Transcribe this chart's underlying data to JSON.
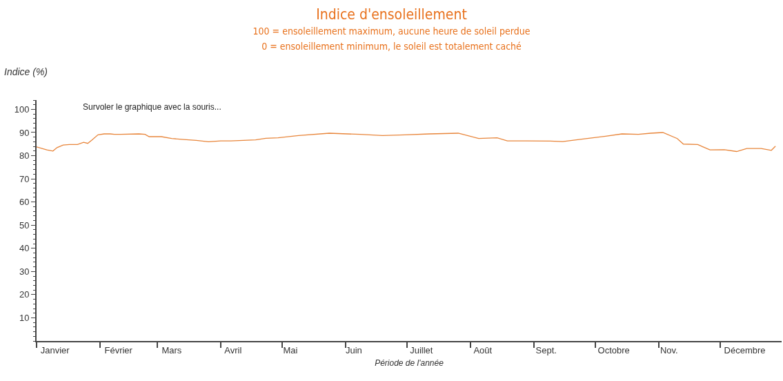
{
  "chart_data": {
    "type": "line",
    "title": "Indice d'ensoleillement",
    "subtitle": "100 = ensoleillement maximum, aucune heure de soleil perdue\n0 = ensoleillement minimum, le soleil est totalement caché",
    "xlabel": "Période de l'année",
    "ylabel": "Indice (%)",
    "annotations": [
      "Survoler le graphique avec la souris..."
    ],
    "x": [
      "--01-01",
      "--01-06",
      "--01-09",
      "--01-11",
      "--01-14",
      "--01-17",
      "--01-21",
      "--01-24",
      "--01-26",
      "--01-28",
      "--01-31",
      "--02-03",
      "--02-06",
      "--02-08",
      "--02-11",
      "--02-20",
      "--02-23",
      "--02-25",
      "--03-03",
      "--03-08",
      "--03-14",
      "--03-20",
      "--03-26",
      "--04-01",
      "--04-06",
      "--04-12",
      "--04-18",
      "--04-23",
      "--04-29",
      "--05-09",
      "--05-24",
      "--06-08",
      "--06-19",
      "--06-30",
      "--07-12",
      "--07-26",
      "--08-05",
      "--08-14",
      "--08-19",
      "--08-28",
      "--09-09",
      "--09-15",
      "--09-25",
      "--10-06",
      "--10-14",
      "--10-22",
      "--10-28",
      "--11-03",
      "--11-10",
      "--11-13",
      "--11-20",
      "--11-26",
      "--12-03",
      "--12-09",
      "--12-14",
      "--12-21",
      "--12-26",
      "--12-28"
    ],
    "series": [
      {
        "color": "#e8853a",
        "values": [
          83.8,
          82.5,
          82,
          83.5,
          84.6,
          84.8,
          84.8,
          85.8,
          85.3,
          86.7,
          89,
          89.4,
          89.4,
          89.2,
          89.2,
          89.4,
          89.2,
          88.2,
          88.2,
          87.4,
          87,
          86.6,
          86,
          86.4,
          86.4,
          86.6,
          86.8,
          87.5,
          87.7,
          88.7,
          89.7,
          89.2,
          88.7,
          89,
          89.4,
          89.7,
          87.4,
          87.7,
          86.4,
          86.4,
          86.3,
          86.1,
          87.2,
          88.4,
          89.4,
          89.2,
          89.7,
          90,
          87.4,
          85,
          84.8,
          82.5,
          82.6,
          81.8,
          83.1,
          83.1,
          82.3,
          84.1
        ]
      }
    ],
    "xlim": [
      "--01-01",
      "--12-31"
    ],
    "xticks": [
      {
        "value": "--01-01",
        "label": null
      },
      {
        "value": "--02-01",
        "label": null
      },
      {
        "value": "--03-01",
        "label": null
      },
      {
        "value": "--04-01",
        "label": null
      },
      {
        "value": "--05-01",
        "label": null
      },
      {
        "value": "--06-01",
        "label": null
      },
      {
        "value": "--07-01",
        "label": null
      },
      {
        "value": "--08-01",
        "label": null
      },
      {
        "value": "--09-01",
        "label": null
      },
      {
        "value": "--10-01",
        "label": null
      },
      {
        "value": "--11-01",
        "label": null
      },
      {
        "value": "--12-01",
        "label": null
      },
      {
        "value": "--01-10",
        "label": "Janvier"
      },
      {
        "value": "--02-10",
        "label": "Février"
      },
      {
        "value": "--03-08",
        "label": "Mars"
      },
      {
        "value": "--04-07",
        "label": "Avril"
      },
      {
        "value": "--05-05",
        "label": "Mai"
      },
      {
        "value": "--06-05",
        "label": "Juin"
      },
      {
        "value": "--07-08",
        "label": "Juillet"
      },
      {
        "value": "--08-07",
        "label": "Août"
      },
      {
        "value": "--09-07",
        "label": "Sept."
      },
      {
        "value": "--10-10",
        "label": "Octobre"
      },
      {
        "value": "--11-06",
        "label": "Nov."
      },
      {
        "value": "--12-13",
        "label": "Décembre"
      }
    ],
    "ylim": [
      0,
      104
    ],
    "yticks": [
      10,
      20,
      30,
      40,
      50,
      60,
      70,
      80,
      90,
      100
    ],
    "marker": "none",
    "line_style": "solid"
  }
}
